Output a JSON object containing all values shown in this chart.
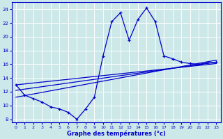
{
  "xlabel": "Graphe des températures (°c)",
  "bg_color": "#cce8e8",
  "grid_color": "#aacccc",
  "line_color": "#0000cc",
  "xlim": [
    -0.5,
    23.5
  ],
  "ylim": [
    7.5,
    25.0
  ],
  "xticks": [
    0,
    1,
    2,
    3,
    4,
    5,
    6,
    7,
    8,
    9,
    10,
    11,
    12,
    13,
    14,
    15,
    16,
    17,
    18,
    19,
    20,
    21,
    22,
    23
  ],
  "yticks": [
    8,
    10,
    12,
    14,
    16,
    18,
    20,
    22,
    24
  ],
  "temp_x": [
    0,
    1,
    2,
    3,
    4,
    5,
    6,
    7,
    8,
    9,
    10,
    11,
    12,
    13,
    14,
    15,
    16,
    17,
    18,
    19,
    20,
    21,
    22,
    23
  ],
  "temp_y": [
    13.0,
    11.5,
    11.0,
    10.5,
    9.8,
    9.5,
    9.0,
    8.0,
    9.5,
    11.2,
    17.2,
    22.2,
    23.5,
    19.5,
    22.5,
    24.2,
    22.2,
    17.2,
    16.8,
    16.3,
    16.1,
    16.0,
    16.2,
    16.3
  ],
  "trend1_x": [
    0,
    23
  ],
  "trend1_y": [
    11.2,
    16.6
  ],
  "trend2_x": [
    0,
    23
  ],
  "trend2_y": [
    12.2,
    16.3
  ],
  "trend3_x": [
    0,
    23
  ],
  "trend3_y": [
    13.0,
    16.1
  ]
}
